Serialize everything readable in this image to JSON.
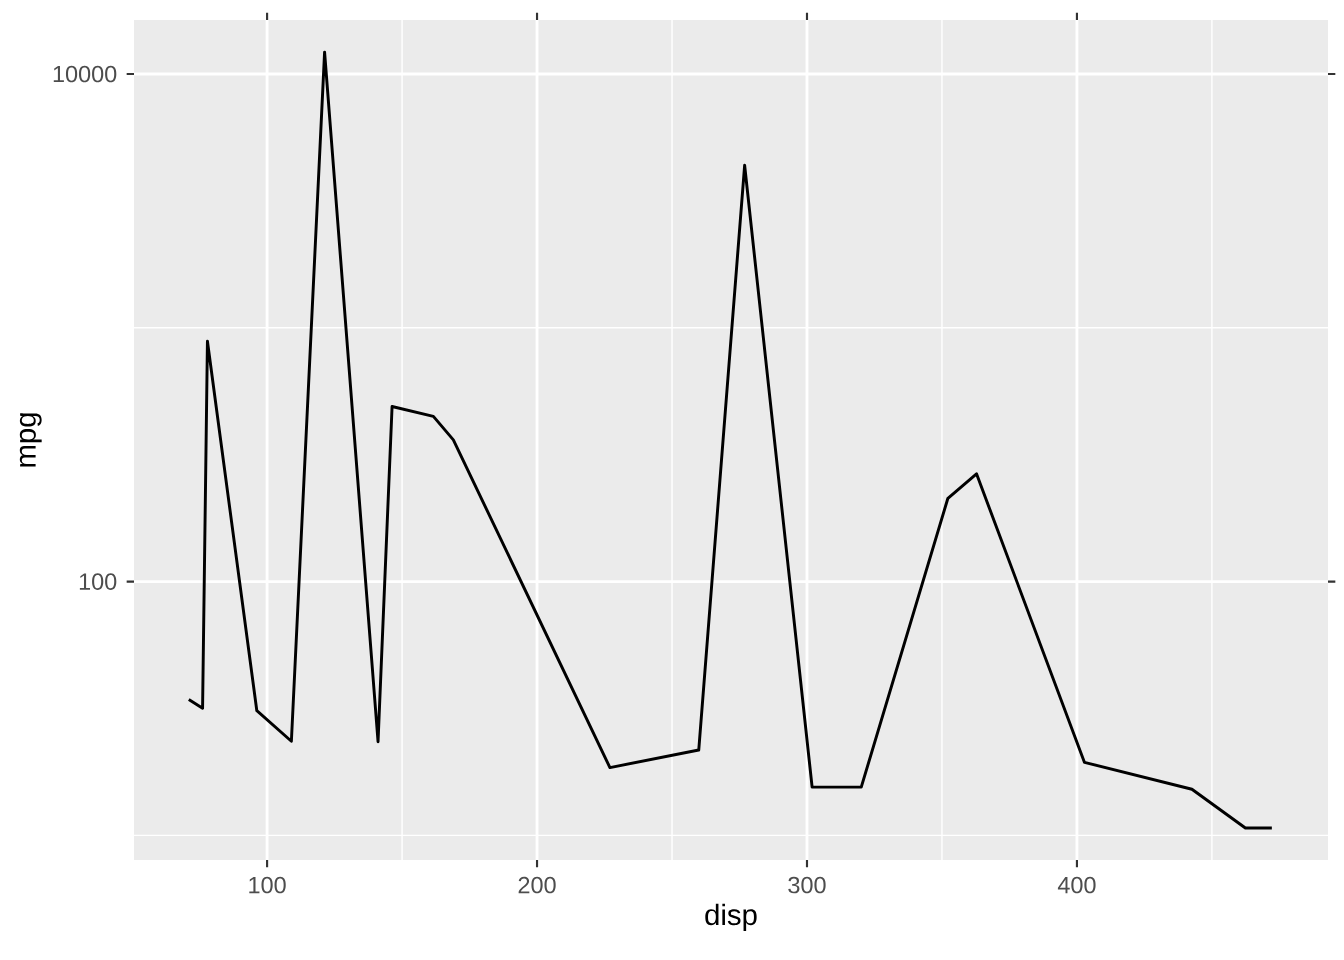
{
  "chart_data": {
    "type": "line",
    "xlabel": "disp",
    "ylabel": "mpg",
    "x": [
      71.0,
      76.1,
      77.9,
      96.2,
      109,
      121.3,
      141.1,
      146.3,
      161.6,
      169,
      227,
      259.9,
      276.9,
      301.9,
      320.1,
      352.2,
      362.8,
      402.8,
      442.6,
      462.4,
      472.2
    ],
    "series": [
      {
        "color": "#000000",
        "values": [
          34.3,
          31.7,
          885,
          31,
          23.5,
          12200,
          23.4,
          490,
          448,
          362,
          18.5,
          21.7,
          4370,
          15.5,
          15.5,
          213,
          266,
          19.4,
          15.2,
          10.7,
          10.7
        ]
      }
    ],
    "log": "y",
    "grid": true,
    "xlim": [
      50.7,
      493
    ],
    "ylim": [
      8.0,
      16330
    ],
    "xticks": [
      100,
      200,
      300,
      400
    ],
    "yticks": [
      100,
      10000
    ]
  }
}
